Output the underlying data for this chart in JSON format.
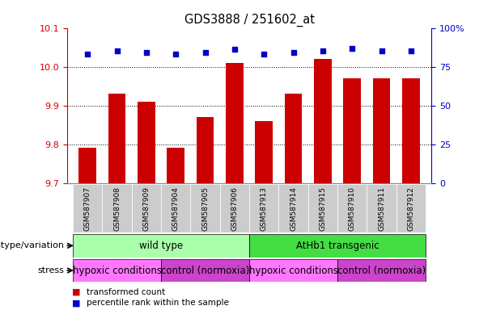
{
  "title": "GDS3888 / 251602_at",
  "samples": [
    "GSM587907",
    "GSM587908",
    "GSM587909",
    "GSM587904",
    "GSM587905",
    "GSM587906",
    "GSM587913",
    "GSM587914",
    "GSM587915",
    "GSM587910",
    "GSM587911",
    "GSM587912"
  ],
  "bar_values": [
    9.79,
    9.93,
    9.91,
    9.79,
    9.87,
    10.01,
    9.86,
    9.93,
    10.02,
    9.97,
    9.97,
    9.97
  ],
  "percentile_values": [
    83,
    85,
    84,
    83,
    84,
    86,
    83,
    84,
    85,
    87,
    85,
    85
  ],
  "ylim_left": [
    9.7,
    10.1
  ],
  "ylim_right": [
    0,
    100
  ],
  "yticks_left": [
    9.7,
    9.8,
    9.9,
    10.0,
    10.1
  ],
  "yticks_right": [
    0,
    25,
    50,
    75,
    100
  ],
  "bar_color": "#CC0000",
  "dot_color": "#0000CC",
  "bar_width": 0.6,
  "genotype_groups": [
    {
      "label": "wild type",
      "start": 0,
      "end": 6,
      "color": "#AAFFAA"
    },
    {
      "label": "AtHb1 transgenic",
      "start": 6,
      "end": 12,
      "color": "#44DD44"
    }
  ],
  "stress_groups": [
    {
      "label": "hypoxic conditions",
      "start": 0,
      "end": 3,
      "color": "#FF77FF"
    },
    {
      "label": "control (normoxia)",
      "start": 3,
      "end": 6,
      "color": "#CC44CC"
    },
    {
      "label": "hypoxic conditions",
      "start": 6,
      "end": 9,
      "color": "#FF77FF"
    },
    {
      "label": "control (normoxia)",
      "start": 9,
      "end": 12,
      "color": "#CC44CC"
    }
  ],
  "legend_items": [
    {
      "label": "transformed count",
      "color": "#CC0000"
    },
    {
      "label": "percentile rank within the sample",
      "color": "#0000CC"
    }
  ],
  "axis_label_color_left": "#CC0000",
  "axis_label_color_right": "#0000CC",
  "genotype_label": "genotype/variation",
  "stress_label": "stress",
  "sample_box_color": "#CCCCCC"
}
